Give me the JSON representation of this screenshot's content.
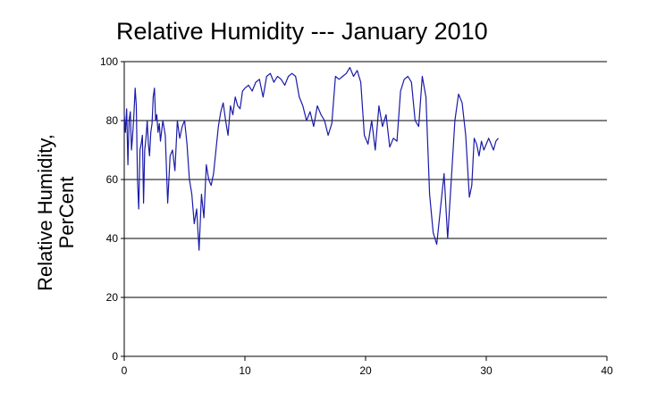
{
  "chart_data": {
    "type": "line",
    "title": "Relative Humidity --- January 2010",
    "ylabel_lines": [
      "Relative Humidity,",
      "PerCent"
    ],
    "xlabel": "",
    "xlim": [
      0,
      40
    ],
    "ylim": [
      0,
      100
    ],
    "x_ticks": [
      "0",
      "10",
      "20",
      "30",
      "40"
    ],
    "y_ticks": [
      "0",
      "20",
      "40",
      "60",
      "80",
      "100"
    ],
    "grid": "horizontal",
    "line_color": "#1a1aa8",
    "series": [
      {
        "name": "",
        "x": [
          0.0,
          0.1,
          0.2,
          0.3,
          0.4,
          0.5,
          0.6,
          0.7,
          0.8,
          0.9,
          1.0,
          1.1,
          1.2,
          1.3,
          1.4,
          1.5,
          1.6,
          1.7,
          1.8,
          1.9,
          2.0,
          2.1,
          2.2,
          2.3,
          2.4,
          2.5,
          2.6,
          2.7,
          2.8,
          2.9,
          3.0,
          3.2,
          3.4,
          3.6,
          3.8,
          4.0,
          4.2,
          4.4,
          4.6,
          4.8,
          5.0,
          5.2,
          5.4,
          5.6,
          5.8,
          6.0,
          6.2,
          6.4,
          6.6,
          6.8,
          7.0,
          7.2,
          7.4,
          7.6,
          7.8,
          8.0,
          8.2,
          8.4,
          8.6,
          8.8,
          9.0,
          9.2,
          9.4,
          9.6,
          9.8,
          10.0,
          10.3,
          10.6,
          10.9,
          11.2,
          11.5,
          11.8,
          12.1,
          12.4,
          12.7,
          13.0,
          13.3,
          13.6,
          13.9,
          14.2,
          14.5,
          14.8,
          15.1,
          15.4,
          15.7,
          16.0,
          16.3,
          16.6,
          16.9,
          17.2,
          17.5,
          17.8,
          18.1,
          18.4,
          18.7,
          19.0,
          19.3,
          19.6,
          19.9,
          20.2,
          20.5,
          20.8,
          21.1,
          21.4,
          21.7,
          22.0,
          22.3,
          22.6,
          22.9,
          23.2,
          23.5,
          23.8,
          24.1,
          24.4,
          24.7,
          25.0,
          25.3,
          25.6,
          25.9,
          26.2,
          26.5,
          26.8,
          27.1,
          27.4,
          27.7,
          28.0,
          28.3,
          28.6,
          28.8,
          29.0,
          29.2,
          29.4,
          29.6,
          29.8,
          30.0,
          30.2,
          30.4,
          30.6,
          30.8,
          31.0
        ],
        "values": [
          82,
          76,
          84,
          65,
          80,
          83,
          70,
          75,
          82,
          91,
          85,
          60,
          50,
          70,
          72,
          75,
          52,
          70,
          74,
          80,
          72,
          68,
          76,
          79,
          88,
          91,
          80,
          82,
          76,
          79,
          73,
          80,
          75,
          52,
          68,
          70,
          63,
          80,
          74,
          78,
          80,
          72,
          60,
          55,
          45,
          50,
          36,
          55,
          47,
          65,
          60,
          58,
          62,
          70,
          78,
          83,
          86,
          80,
          75,
          85,
          82,
          88,
          85,
          84,
          90,
          91,
          92,
          90,
          93,
          94,
          88,
          95,
          96,
          93,
          95,
          94,
          92,
          95,
          96,
          95,
          88,
          85,
          80,
          83,
          78,
          85,
          82,
          80,
          75,
          79,
          95,
          94,
          95,
          96,
          98,
          95,
          97,
          93,
          75,
          72,
          80,
          70,
          85,
          78,
          82,
          71,
          74,
          73,
          90,
          94,
          95,
          93,
          80,
          78,
          95,
          88,
          55,
          42,
          38,
          50,
          62,
          40,
          60,
          80,
          89,
          86,
          75,
          54,
          58,
          74,
          72,
          68,
          73,
          70,
          72,
          74,
          72,
          70,
          73,
          74
        ]
      }
    ]
  }
}
